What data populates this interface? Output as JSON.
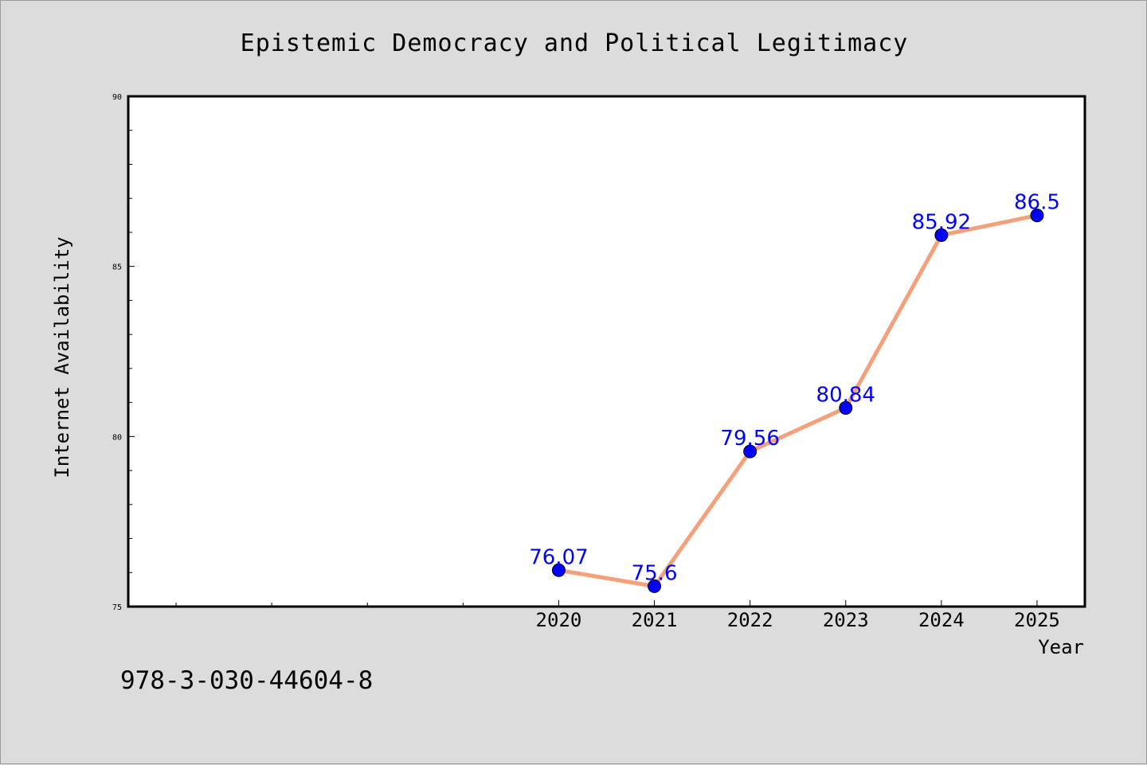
{
  "colors": {
    "background": "#dcdcdc",
    "plot_background": "#ffffff",
    "line": "#f4a07a",
    "marker": "#0000ff",
    "data_label": "#0000ff"
  },
  "footer": {
    "isbn": "978-3-030-44604-8"
  },
  "chart_data": {
    "type": "line",
    "title": "Epistemic Democracy and Political Legitimacy",
    "xlabel": "Year",
    "ylabel": "Internet Availability",
    "x": [
      2020,
      2021,
      2022,
      2023,
      2024,
      2025
    ],
    "series": [
      {
        "values": [
          76.07,
          75.6,
          79.56,
          80.84,
          85.92,
          86.5
        ]
      }
    ],
    "data_labels": [
      "76.07",
      "75.6",
      "79.56",
      "80.84",
      "85.92",
      "86.5"
    ],
    "x_tick_labels": [
      "2020",
      "2021",
      "2022",
      "2023",
      "2024",
      "2025"
    ],
    "xlim": [
      2015.5,
      2025.5
    ],
    "ylim": [
      75,
      90
    ],
    "y_ticks": [
      75,
      80,
      85,
      90
    ],
    "y_tick_labels": [
      "75",
      "80",
      "85",
      "90"
    ],
    "y_minor_step": 1,
    "x_minor_ticks": [
      2016,
      2017,
      2018,
      2019
    ],
    "grid": false,
    "legend": "none"
  }
}
